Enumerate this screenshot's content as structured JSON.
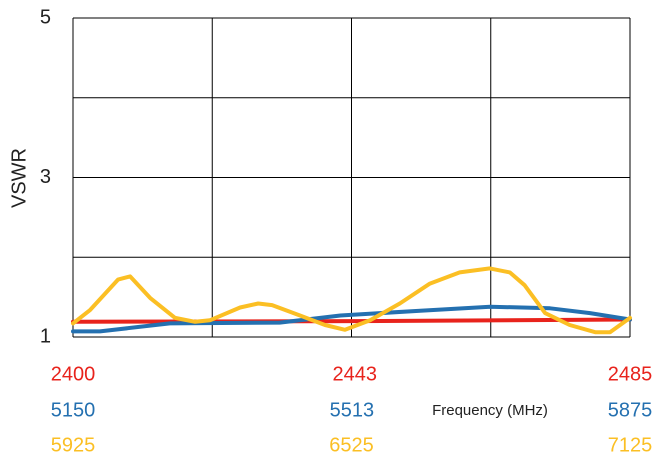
{
  "chart_data": {
    "type": "line",
    "y_label": "VSWR",
    "x_label": "Frequency (MHz)",
    "ylim": [
      1,
      5
    ],
    "yticks": [
      1,
      {
        "value": 2,
        "label": null
      },
      3,
      {
        "value": 4,
        "label": null
      },
      5
    ],
    "grid": true,
    "series": [
      {
        "color": "#e8231c",
        "xlim": [
          2400,
          2485
        ],
        "xticks": [
          2400,
          2443,
          2485
        ],
        "x": [
          2400,
          2443,
          2485
        ],
        "values": [
          1.19,
          1.2,
          1.22
        ]
      },
      {
        "color": "#2470b0",
        "xlim": [
          5150,
          5875
        ],
        "xticks": [
          5150,
          5513,
          5875
        ],
        "x": [
          5150,
          5185,
          5276,
          5419,
          5498,
          5602,
          5693,
          5771,
          5823,
          5875
        ],
        "values": [
          1.07,
          1.07,
          1.17,
          1.18,
          1.27,
          1.33,
          1.38,
          1.36,
          1.3,
          1.22
        ]
      },
      {
        "color": "#fbbf24",
        "xlim": [
          5925,
          7125
        ],
        "xticks": [
          5925,
          6525,
          7125
        ],
        "x": [
          5925,
          5962,
          6022,
          6048,
          6091,
          6145,
          6188,
          6220,
          6285,
          6324,
          6354,
          6414,
          6468,
          6511,
          6565,
          6629,
          6694,
          6758,
          6823,
          6866,
          6898,
          6942,
          6995,
          7050,
          7082,
          7125
        ],
        "values": [
          1.17,
          1.34,
          1.72,
          1.76,
          1.49,
          1.24,
          1.19,
          1.21,
          1.37,
          1.42,
          1.4,
          1.27,
          1.15,
          1.09,
          1.21,
          1.42,
          1.67,
          1.81,
          1.86,
          1.81,
          1.65,
          1.3,
          1.15,
          1.06,
          1.06,
          1.24
        ]
      }
    ]
  }
}
